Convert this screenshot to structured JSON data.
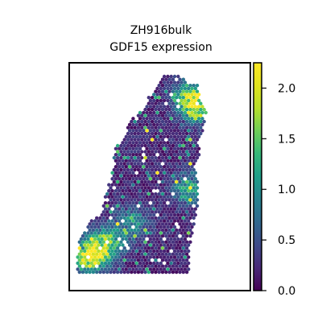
{
  "chart_data": {
    "type": "scatter",
    "title": "ZH916bulk",
    "subtitle": "GDF15 expression",
    "xlabel": "",
    "ylabel": "",
    "x_ticks": [],
    "y_ticks": [],
    "colorbar": {
      "cmap": "viridis",
      "range": [
        0.0,
        2.25
      ],
      "ticks": [
        "0.0",
        "0.5",
        "1.0",
        "1.5",
        "2.0"
      ],
      "tick_values": [
        0.0,
        0.5,
        1.0,
        1.5,
        2.0
      ]
    },
    "region_outline_points": [
      [
        0.53,
        0.95
      ],
      [
        0.62,
        0.94
      ],
      [
        0.66,
        0.91
      ],
      [
        0.71,
        0.9
      ],
      [
        0.72,
        0.84
      ],
      [
        0.76,
        0.78
      ],
      [
        0.74,
        0.71
      ],
      [
        0.71,
        0.66
      ],
      [
        0.72,
        0.6
      ],
      [
        0.69,
        0.55
      ],
      [
        0.71,
        0.48
      ],
      [
        0.71,
        0.38
      ],
      [
        0.69,
        0.3
      ],
      [
        0.67,
        0.22
      ],
      [
        0.66,
        0.07
      ],
      [
        0.04,
        0.07
      ],
      [
        0.05,
        0.2
      ],
      [
        0.1,
        0.3
      ],
      [
        0.18,
        0.34
      ],
      [
        0.21,
        0.45
      ],
      [
        0.24,
        0.53
      ],
      [
        0.25,
        0.62
      ],
      [
        0.31,
        0.68
      ],
      [
        0.33,
        0.74
      ],
      [
        0.4,
        0.79
      ],
      [
        0.44,
        0.85
      ],
      [
        0.47,
        0.88
      ]
    ],
    "hotspots": [
      {
        "x": 0.15,
        "y": 0.17,
        "value": 1.4
      },
      {
        "x": 0.1,
        "y": 0.14,
        "value": 1.3
      },
      {
        "x": 0.22,
        "y": 0.22,
        "value": 1.1
      },
      {
        "x": 0.68,
        "y": 0.85,
        "value": 1.6
      },
      {
        "x": 0.7,
        "y": 0.8,
        "value": 1.4
      },
      {
        "x": 0.66,
        "y": 0.45,
        "value": 1.2
      },
      {
        "x": 0.35,
        "y": 0.3,
        "value": 0.9
      }
    ]
  }
}
